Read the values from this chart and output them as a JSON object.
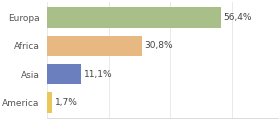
{
  "categories": [
    "Europa",
    "Africa",
    "Asia",
    "America"
  ],
  "values": [
    56.4,
    30.8,
    11.1,
    1.7
  ],
  "bar_colors": [
    "#a8bf8a",
    "#e8b882",
    "#6b7fbf",
    "#e8c85a"
  ],
  "labels": [
    "56,4%",
    "30,8%",
    "11,1%",
    "1,7%"
  ],
  "xlim": [
    0,
    75
  ],
  "background_color": "#ffffff",
  "label_fontsize": 6.5,
  "category_fontsize": 6.5,
  "bar_height": 0.72
}
